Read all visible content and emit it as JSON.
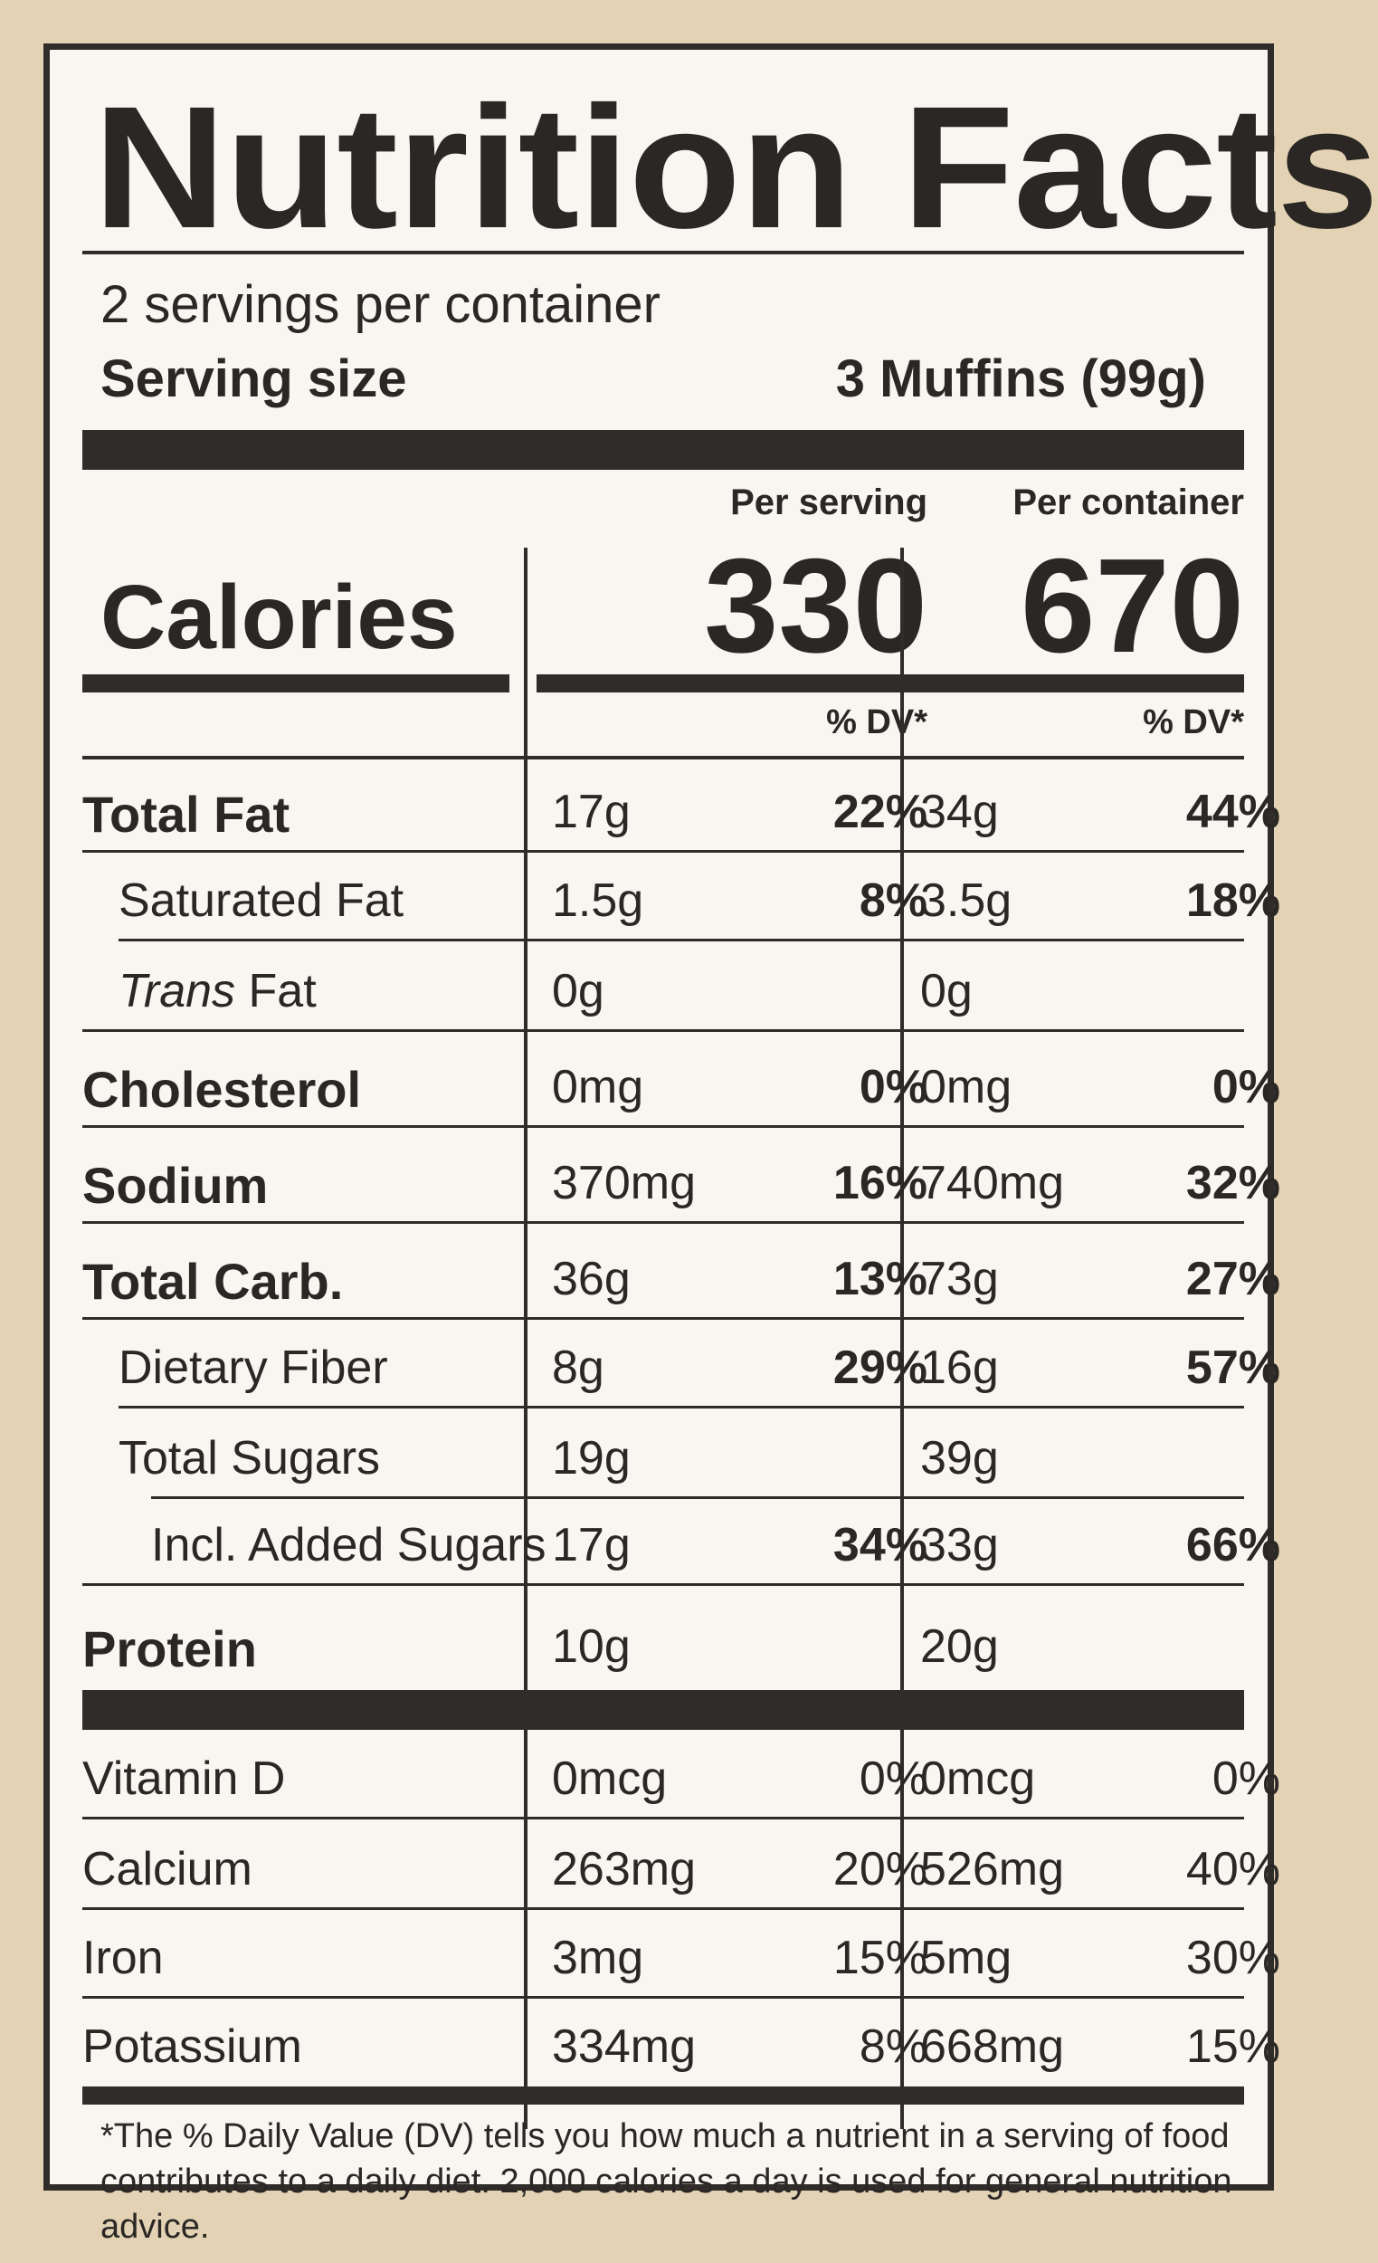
{
  "title": "Nutrition Facts",
  "servings_per_container": "2 servings per container",
  "serving_size_label": "Serving size",
  "serving_size_value": "3 Muffins (99g)",
  "per_serving_label": "Per serving",
  "per_container_label": "Per container",
  "calories_label": "Calories",
  "calories_per_serving": "330",
  "calories_per_container": "670",
  "dv_header": "% DV*",
  "nutrients": [
    {
      "name": "Total Fat",
      "amount_serving": "17g",
      "dv_serving": "22%",
      "amount_container": "34g",
      "dv_container": "44%"
    },
    {
      "name": "Saturated Fat",
      "amount_serving": "1.5g",
      "dv_serving": "8%",
      "amount_container": "3.5g",
      "dv_container": "18%"
    },
    {
      "name_italic": "Trans",
      "name": " Fat",
      "amount_serving": "0g",
      "dv_serving": "",
      "amount_container": "0g",
      "dv_container": ""
    },
    {
      "name": "Cholesterol",
      "amount_serving": "0mg",
      "dv_serving": "0%",
      "amount_container": "0mg",
      "dv_container": "0%"
    },
    {
      "name": "Sodium",
      "amount_serving": "370mg",
      "dv_serving": "16%",
      "amount_container": "740mg",
      "dv_container": "32%"
    },
    {
      "name": "Total Carb.",
      "amount_serving": "36g",
      "dv_serving": "13%",
      "amount_container": "73g",
      "dv_container": "27%"
    },
    {
      "name": "Dietary Fiber",
      "amount_serving": "8g",
      "dv_serving": "29%",
      "amount_container": "16g",
      "dv_container": "57%"
    },
    {
      "name": "Total Sugars",
      "amount_serving": "19g",
      "dv_serving": "",
      "amount_container": "39g",
      "dv_container": ""
    },
    {
      "name": "Incl. Added Sugars",
      "amount_serving": "17g",
      "dv_serving": "34%",
      "amount_container": "33g",
      "dv_container": "66%"
    },
    {
      "name": "Protein",
      "amount_serving": "10g",
      "dv_serving": "",
      "amount_container": "20g",
      "dv_container": ""
    }
  ],
  "vitamins": [
    {
      "name": "Vitamin D",
      "amount_serving": "0mcg",
      "dv_serving": "0%",
      "amount_container": "0mcg",
      "dv_container": "0%"
    },
    {
      "name": "Calcium",
      "amount_serving": "263mg",
      "dv_serving": "20%",
      "amount_container": "526mg",
      "dv_container": "40%"
    },
    {
      "name": "Iron",
      "amount_serving": "3mg",
      "dv_serving": "15%",
      "amount_container": "5mg",
      "dv_container": "30%"
    },
    {
      "name": "Potassium",
      "amount_serving": "334mg",
      "dv_serving": "8%",
      "amount_container": "668mg",
      "dv_container": "15%"
    }
  ],
  "footnote": "*The % Daily Value (DV) tells you how much a nutrient in a serving of food contributes to a daily diet. 2,000 calories a day is used for general nutrition advice."
}
